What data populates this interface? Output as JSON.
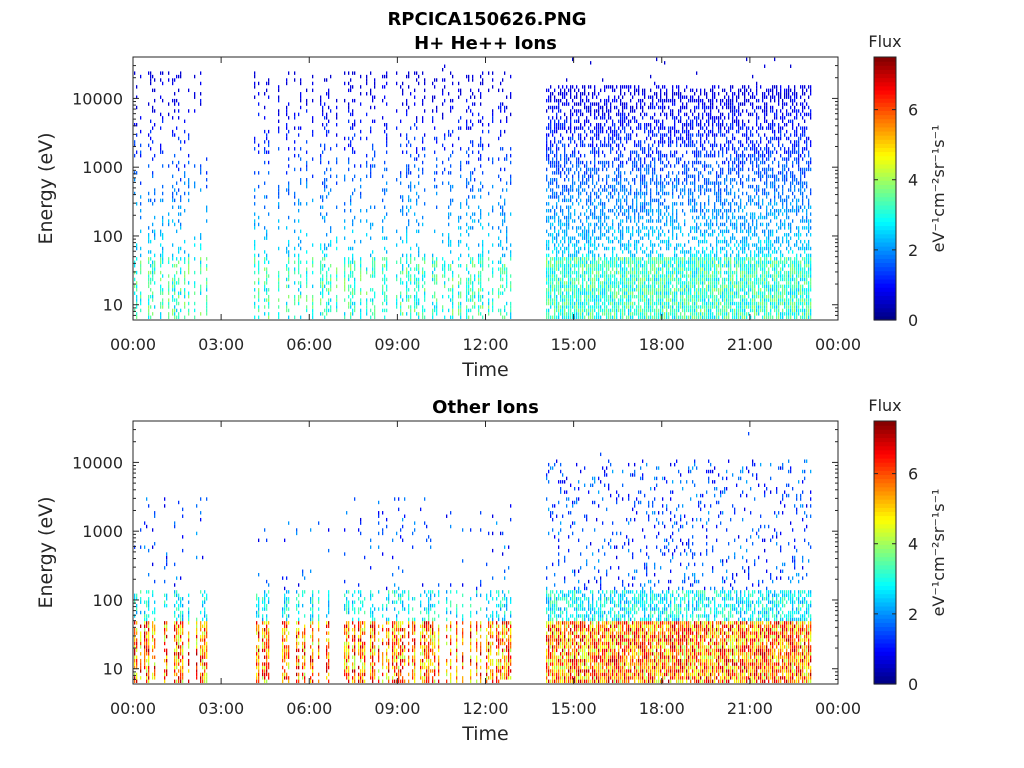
{
  "figure": {
    "title": "RPCICA150626.PNG"
  },
  "chart_data": [
    {
      "type": "heatmap",
      "title": "H+ He++ Ions",
      "xlabel": "Time",
      "ylabel": "Energy (eV)",
      "x_ticks": [
        "00:00",
        "03:00",
        "06:00",
        "09:00",
        "12:00",
        "15:00",
        "18:00",
        "21:00",
        "00:00"
      ],
      "x_range_hours": [
        0,
        24
      ],
      "y_scale": "log",
      "y_ticks": [
        "10",
        "100",
        "1000",
        "10000"
      ],
      "y_range": [
        6,
        40000
      ],
      "data_gaps_hours": [
        [
          2.6,
          4.1
        ],
        [
          12.9,
          14.0
        ],
        [
          23.1,
          24.0
        ]
      ],
      "colorbar": {
        "label": "Flux",
        "units": "eV⁻¹cm⁻²sr⁻¹s⁻¹",
        "range": [
          0,
          7.5
        ],
        "ticks": [
          "0",
          "2",
          "4",
          "6"
        ],
        "colormap": "jet"
      }
    },
    {
      "type": "heatmap",
      "title": "Other Ions",
      "xlabel": "Time",
      "ylabel": "Energy (eV)",
      "x_ticks": [
        "00:00",
        "03:00",
        "06:00",
        "09:00",
        "12:00",
        "15:00",
        "18:00",
        "21:00",
        "00:00"
      ],
      "x_range_hours": [
        0,
        24
      ],
      "y_scale": "log",
      "y_ticks": [
        "10",
        "100",
        "1000",
        "10000"
      ],
      "y_range": [
        6,
        40000
      ],
      "data_gaps_hours": [
        [
          2.6,
          4.1
        ],
        [
          12.9,
          14.0
        ],
        [
          23.1,
          24.0
        ]
      ],
      "colorbar": {
        "label": "Flux",
        "units": "eV⁻¹cm⁻²sr⁻¹s⁻¹",
        "range": [
          0,
          7.5
        ],
        "ticks": [
          "0",
          "2",
          "4",
          "6"
        ],
        "colormap": "jet"
      }
    }
  ]
}
